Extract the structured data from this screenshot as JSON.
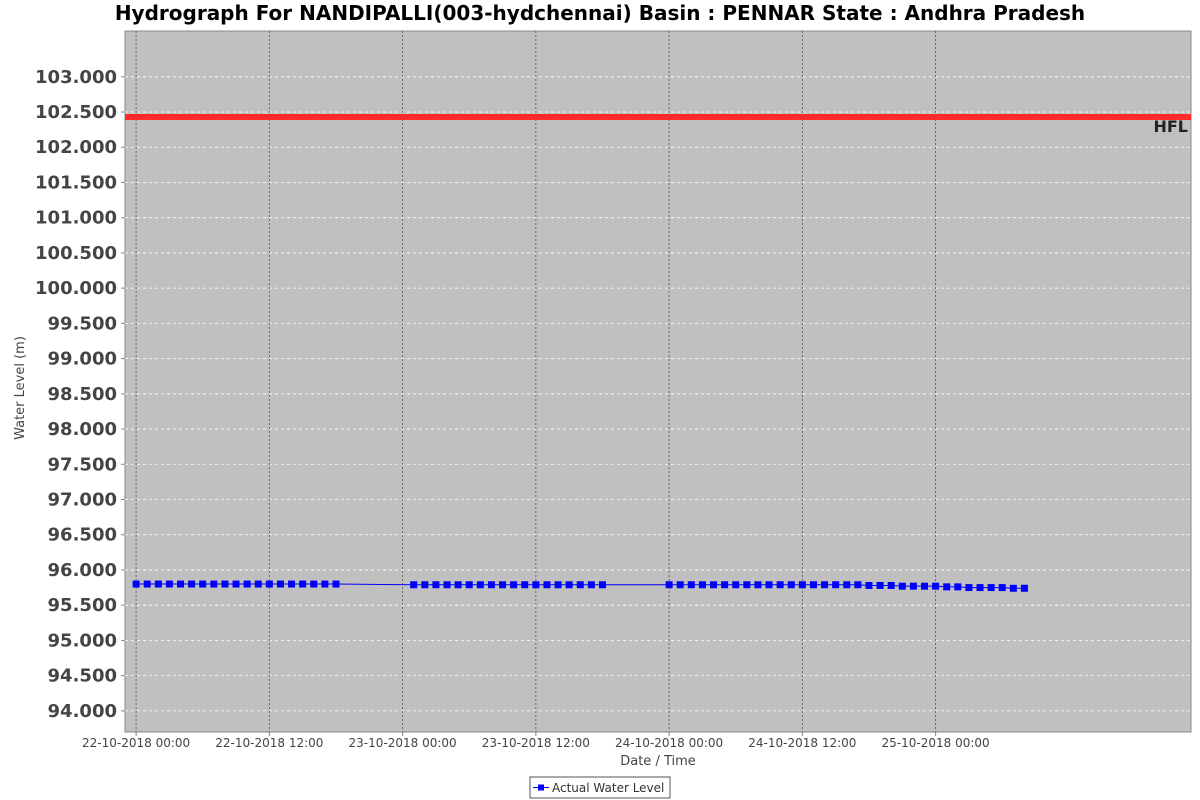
{
  "colors": {
    "plot_background": "#c0c0c0",
    "series": "#0000ff",
    "hfl": "#ff2a2a",
    "gridline": "#ffffff",
    "domain_gridline": "#555555"
  },
  "chart_data": {
    "type": "line",
    "title": "Hydrograph For NANDIPALLI(003-hydchennai) Basin : PENNAR State : Andhra Pradesh",
    "xlabel": "Date / Time",
    "ylabel": "Water Level (m)",
    "ylim": [
      93.7,
      103.65
    ],
    "xlim": [
      "2018-10-21T23:00",
      "2018-10-25T23:00"
    ],
    "yticks": [
      "94.000",
      "94.500",
      "95.000",
      "95.500",
      "96.000",
      "96.500",
      "97.000",
      "97.500",
      "98.000",
      "98.500",
      "99.000",
      "99.500",
      "100.000",
      "100.500",
      "101.000",
      "101.500",
      "102.000",
      "102.500",
      "103.000"
    ],
    "xticks": [
      {
        "value": "2018-10-22T00:00",
        "label": "22-10-2018 00:00"
      },
      {
        "value": "2018-10-22T12:00",
        "label": "22-10-2018 12:00"
      },
      {
        "value": "2018-10-23T00:00",
        "label": "23-10-2018 00:00"
      },
      {
        "value": "2018-10-23T12:00",
        "label": "23-10-2018 12:00"
      },
      {
        "value": "2018-10-24T00:00",
        "label": "24-10-2018 00:00"
      },
      {
        "value": "2018-10-24T12:00",
        "label": "24-10-2018 12:00"
      },
      {
        "value": "2018-10-25T00:00",
        "label": "25-10-2018 00:00"
      }
    ],
    "grid": true,
    "legend_placement": "bottom-center",
    "hfl": {
      "label": "HFL",
      "value": 102.43
    },
    "series": [
      {
        "name": "Actual Water Level",
        "points": [
          {
            "x": "2018-10-22T00:00",
            "y": 95.8
          },
          {
            "x": "2018-10-22T01:00",
            "y": 95.8
          },
          {
            "x": "2018-10-22T02:00",
            "y": 95.8
          },
          {
            "x": "2018-10-22T03:00",
            "y": 95.8
          },
          {
            "x": "2018-10-22T04:00",
            "y": 95.8
          },
          {
            "x": "2018-10-22T05:00",
            "y": 95.8
          },
          {
            "x": "2018-10-22T06:00",
            "y": 95.8
          },
          {
            "x": "2018-10-22T07:00",
            "y": 95.8
          },
          {
            "x": "2018-10-22T08:00",
            "y": 95.8
          },
          {
            "x": "2018-10-22T09:00",
            "y": 95.8
          },
          {
            "x": "2018-10-22T10:00",
            "y": 95.8
          },
          {
            "x": "2018-10-22T11:00",
            "y": 95.8
          },
          {
            "x": "2018-10-22T12:00",
            "y": 95.8
          },
          {
            "x": "2018-10-22T13:00",
            "y": 95.8
          },
          {
            "x": "2018-10-22T14:00",
            "y": 95.8
          },
          {
            "x": "2018-10-22T15:00",
            "y": 95.8
          },
          {
            "x": "2018-10-22T16:00",
            "y": 95.8
          },
          {
            "x": "2018-10-22T17:00",
            "y": 95.8
          },
          {
            "x": "2018-10-22T18:00",
            "y": 95.8
          },
          {
            "x": "2018-10-23T01:00",
            "y": 95.79
          },
          {
            "x": "2018-10-23T02:00",
            "y": 95.79
          },
          {
            "x": "2018-10-23T03:00",
            "y": 95.79
          },
          {
            "x": "2018-10-23T04:00",
            "y": 95.79
          },
          {
            "x": "2018-10-23T05:00",
            "y": 95.79
          },
          {
            "x": "2018-10-23T06:00",
            "y": 95.79
          },
          {
            "x": "2018-10-23T07:00",
            "y": 95.79
          },
          {
            "x": "2018-10-23T08:00",
            "y": 95.79
          },
          {
            "x": "2018-10-23T09:00",
            "y": 95.79
          },
          {
            "x": "2018-10-23T10:00",
            "y": 95.79
          },
          {
            "x": "2018-10-23T11:00",
            "y": 95.79
          },
          {
            "x": "2018-10-23T12:00",
            "y": 95.79
          },
          {
            "x": "2018-10-23T13:00",
            "y": 95.79
          },
          {
            "x": "2018-10-23T14:00",
            "y": 95.79
          },
          {
            "x": "2018-10-23T15:00",
            "y": 95.79
          },
          {
            "x": "2018-10-23T16:00",
            "y": 95.79
          },
          {
            "x": "2018-10-23T17:00",
            "y": 95.79
          },
          {
            "x": "2018-10-23T18:00",
            "y": 95.79
          },
          {
            "x": "2018-10-24T00:00",
            "y": 95.79
          },
          {
            "x": "2018-10-24T01:00",
            "y": 95.79
          },
          {
            "x": "2018-10-24T02:00",
            "y": 95.79
          },
          {
            "x": "2018-10-24T03:00",
            "y": 95.79
          },
          {
            "x": "2018-10-24T04:00",
            "y": 95.79
          },
          {
            "x": "2018-10-24T05:00",
            "y": 95.79
          },
          {
            "x": "2018-10-24T06:00",
            "y": 95.79
          },
          {
            "x": "2018-10-24T07:00",
            "y": 95.79
          },
          {
            "x": "2018-10-24T08:00",
            "y": 95.79
          },
          {
            "x": "2018-10-24T09:00",
            "y": 95.79
          },
          {
            "x": "2018-10-24T10:00",
            "y": 95.79
          },
          {
            "x": "2018-10-24T11:00",
            "y": 95.79
          },
          {
            "x": "2018-10-24T12:00",
            "y": 95.79
          },
          {
            "x": "2018-10-24T13:00",
            "y": 95.79
          },
          {
            "x": "2018-10-24T14:00",
            "y": 95.79
          },
          {
            "x": "2018-10-24T15:00",
            "y": 95.79
          },
          {
            "x": "2018-10-24T16:00",
            "y": 95.79
          },
          {
            "x": "2018-10-24T17:00",
            "y": 95.79
          },
          {
            "x": "2018-10-24T18:00",
            "y": 95.78
          },
          {
            "x": "2018-10-24T19:00",
            "y": 95.78
          },
          {
            "x": "2018-10-24T20:00",
            "y": 95.78
          },
          {
            "x": "2018-10-24T21:00",
            "y": 95.77
          },
          {
            "x": "2018-10-24T22:00",
            "y": 95.77
          },
          {
            "x": "2018-10-24T23:00",
            "y": 95.77
          },
          {
            "x": "2018-10-25T00:00",
            "y": 95.77
          },
          {
            "x": "2018-10-25T01:00",
            "y": 95.76
          },
          {
            "x": "2018-10-25T02:00",
            "y": 95.76
          },
          {
            "x": "2018-10-25T03:00",
            "y": 95.75
          },
          {
            "x": "2018-10-25T04:00",
            "y": 95.75
          },
          {
            "x": "2018-10-25T05:00",
            "y": 95.75
          },
          {
            "x": "2018-10-25T06:00",
            "y": 95.75
          },
          {
            "x": "2018-10-25T07:00",
            "y": 95.74
          },
          {
            "x": "2018-10-25T08:00",
            "y": 95.74
          }
        ]
      }
    ]
  }
}
